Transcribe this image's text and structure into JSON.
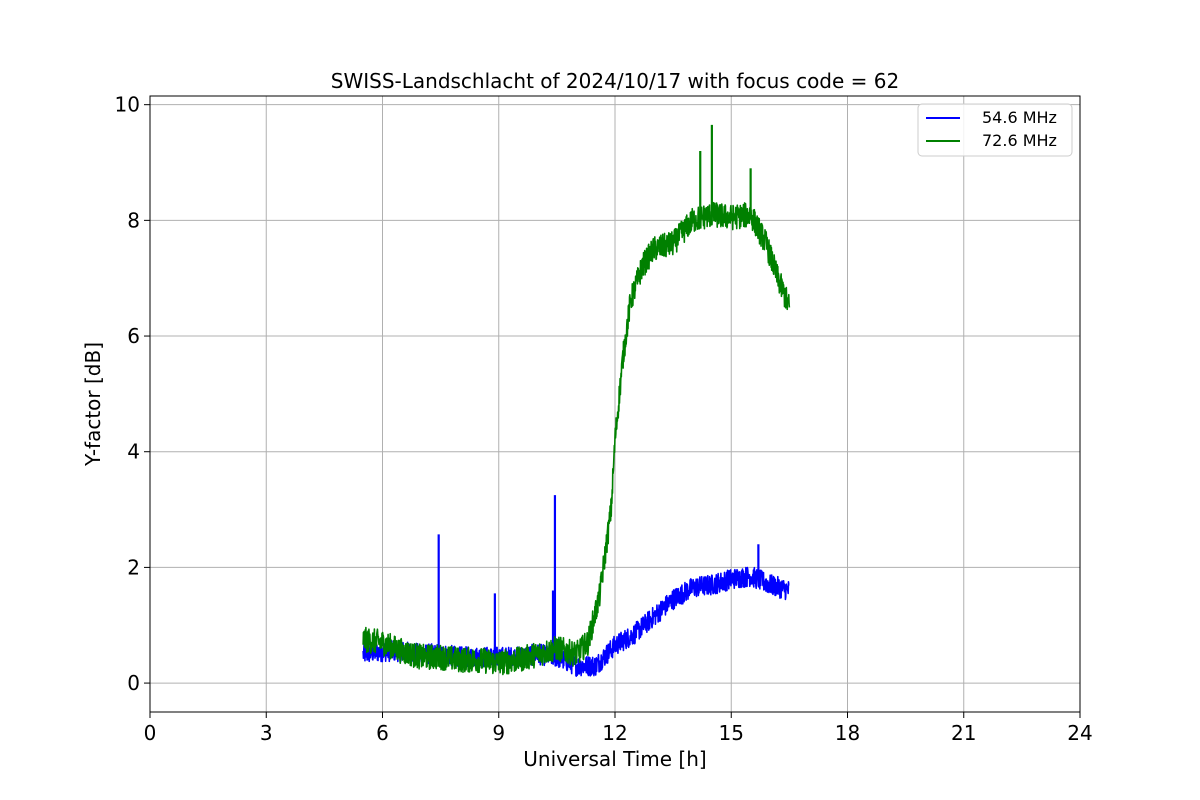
{
  "chart_data": {
    "type": "line",
    "title": "SWISS-Landschlacht of 2024/10/17 with focus code = 62",
    "xlabel": "Universal Time [h]",
    "ylabel": "Y-factor [dB]",
    "xlim": [
      0,
      24
    ],
    "ylim": [
      -0.5,
      10.15
    ],
    "xticks": [
      0,
      3,
      6,
      9,
      12,
      15,
      18,
      21,
      24
    ],
    "xtick_labels": [
      "0",
      "3",
      "6",
      "9",
      "12",
      "15",
      "18",
      "21",
      "24"
    ],
    "yticks": [
      0,
      2,
      4,
      6,
      8,
      10
    ],
    "ytick_labels": [
      "0",
      "2",
      "4",
      "6",
      "8",
      "10"
    ],
    "grid": true,
    "legend_position": "top-right",
    "series": [
      {
        "name": "54.6 MHz",
        "color": "#0000ff",
        "noise": 0.18,
        "x": [
          5.5,
          6.0,
          6.5,
          7.0,
          7.5,
          8.0,
          8.5,
          9.0,
          9.5,
          10.0,
          10.5,
          11.0,
          11.5,
          12.0,
          12.5,
          13.0,
          13.5,
          14.0,
          14.5,
          15.0,
          15.5,
          16.0,
          16.5
        ],
        "y": [
          0.5,
          0.55,
          0.55,
          0.5,
          0.5,
          0.45,
          0.45,
          0.45,
          0.45,
          0.5,
          0.45,
          0.3,
          0.3,
          0.65,
          0.85,
          1.15,
          1.45,
          1.65,
          1.7,
          1.8,
          1.85,
          1.7,
          1.6
        ],
        "spikes": [
          {
            "x": 7.45,
            "y": 2.57
          },
          {
            "x": 8.9,
            "y": 1.55
          },
          {
            "x": 10.4,
            "y": 1.6
          },
          {
            "x": 10.45,
            "y": 3.25
          },
          {
            "x": 15.7,
            "y": 2.4
          }
        ]
      },
      {
        "name": "72.6 MHz",
        "color": "#008000",
        "noise": 0.22,
        "x": [
          5.5,
          6.0,
          6.5,
          7.0,
          7.5,
          8.0,
          8.5,
          9.0,
          9.5,
          10.0,
          10.5,
          11.0,
          11.3,
          11.6,
          11.9,
          12.0,
          12.2,
          12.4,
          12.7,
          13.0,
          13.5,
          14.0,
          14.5,
          15.0,
          15.5,
          15.9,
          16.2,
          16.5
        ],
        "y": [
          0.75,
          0.7,
          0.55,
          0.45,
          0.45,
          0.4,
          0.4,
          0.35,
          0.4,
          0.5,
          0.6,
          0.5,
          0.7,
          1.5,
          3.0,
          4.2,
          5.6,
          6.6,
          7.2,
          7.5,
          7.6,
          8.0,
          8.1,
          8.05,
          8.1,
          7.6,
          7.0,
          6.5
        ],
        "spikes": [
          {
            "x": 14.5,
            "y": 9.65
          },
          {
            "x": 14.2,
            "y": 9.2
          },
          {
            "x": 15.5,
            "y": 8.9
          }
        ]
      }
    ]
  }
}
